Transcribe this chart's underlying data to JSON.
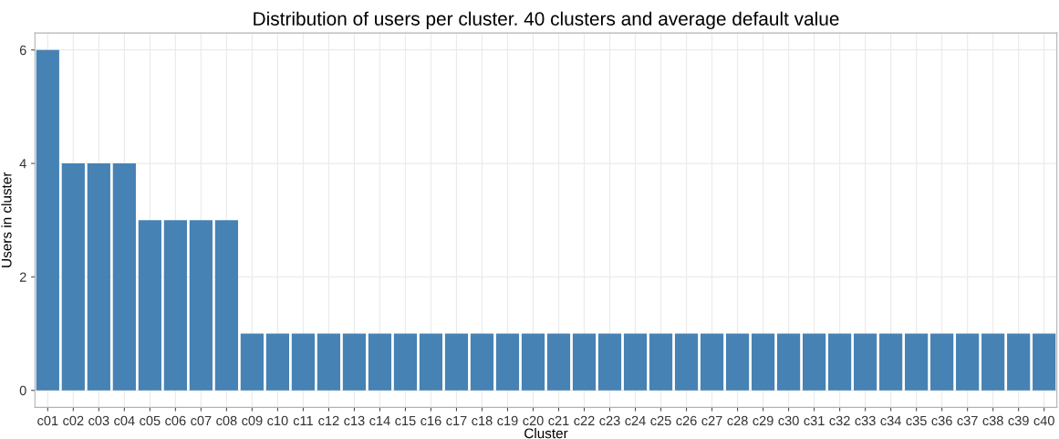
{
  "chart_data": {
    "type": "bar",
    "title": "Distribution of users per cluster. 40 clusters and average default value",
    "xlabel": "Cluster",
    "ylabel": "Users in cluster",
    "categories": [
      "c01",
      "c02",
      "c03",
      "c04",
      "c05",
      "c06",
      "c07",
      "c08",
      "c09",
      "c10",
      "c11",
      "c12",
      "c13",
      "c14",
      "c15",
      "c16",
      "c17",
      "c18",
      "c19",
      "c20",
      "c21",
      "c22",
      "c23",
      "c24",
      "c25",
      "c26",
      "c27",
      "c28",
      "c29",
      "c30",
      "c31",
      "c32",
      "c33",
      "c34",
      "c35",
      "c36",
      "c37",
      "c38",
      "c39",
      "c40"
    ],
    "values": [
      6,
      4,
      4,
      4,
      3,
      3,
      3,
      3,
      1,
      1,
      1,
      1,
      1,
      1,
      1,
      1,
      1,
      1,
      1,
      1,
      1,
      1,
      1,
      1,
      1,
      1,
      1,
      1,
      1,
      1,
      1,
      1,
      1,
      1,
      1,
      1,
      1,
      1,
      1,
      1
    ],
    "color": "#4682b4",
    "ylim": [
      -0.3,
      6.3
    ],
    "yticks": [
      0,
      2,
      4,
      6
    ],
    "grid": true
  }
}
